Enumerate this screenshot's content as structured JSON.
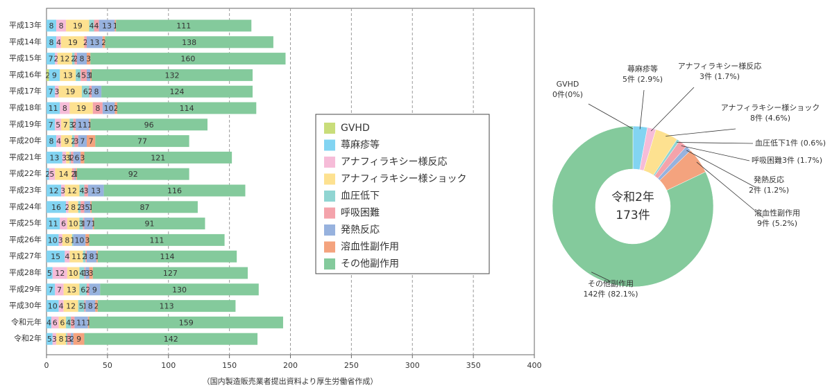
{
  "chart_data": [
    {
      "type": "stacked-barh",
      "categories": [
        "平成13年",
        "平成14年",
        "平成15年",
        "平成16年",
        "平成17年",
        "平成18年",
        "平成19年",
        "平成20年",
        "平成21年",
        "平成22年",
        "平成23年",
        "平成24年",
        "平成25年",
        "平成26年",
        "平成27年",
        "平成28年",
        "平成29年",
        "平成30年",
        "令和元年",
        "令和2年"
      ],
      "series": [
        {
          "name": "GVHD",
          "color": "#c9dd7a",
          "values": [
            0,
            0,
            0,
            2,
            0,
            0,
            0,
            0,
            0,
            0,
            0,
            0,
            0,
            0,
            0,
            0,
            0,
            0,
            0,
            0
          ]
        },
        {
          "name": "蕁麻疹等",
          "color": "#82d4f2",
          "values": [
            8,
            8,
            7,
            9,
            7,
            11,
            7,
            8,
            13,
            2,
            12,
            16,
            11,
            10,
            15,
            5,
            7,
            10,
            4,
            5
          ]
        },
        {
          "name": "アナフィラキシー様反応",
          "color": "#f6bcd8",
          "values": [
            8,
            4,
            2,
            0,
            3,
            8,
            5,
            4,
            3,
            5,
            3,
            2,
            6,
            3,
            4,
            12,
            7,
            4,
            6,
            3
          ]
        },
        {
          "name": "アナフィラキシー様ショック",
          "color": "#fde190",
          "values": [
            19,
            19,
            12,
            13,
            19,
            19,
            7,
            9,
            3,
            14,
            12,
            8,
            10,
            8,
            11,
            10,
            13,
            12,
            6,
            8
          ]
        },
        {
          "name": "血圧低下",
          "color": "#90d5d2",
          "values": [
            4,
            0,
            2,
            4,
            6,
            0,
            3,
            2,
            1,
            0,
            4,
            2,
            3,
            1,
            2,
            4,
            6,
            5,
            4,
            1
          ]
        },
        {
          "name": "呼吸困難",
          "color": "#f4a3ab",
          "values": [
            4,
            2,
            2,
            5,
            2,
            8,
            2,
            3,
            2,
            2,
            3,
            3,
            1,
            0,
            1,
            1,
            2,
            1,
            3,
            3
          ]
        },
        {
          "name": "発熱反応",
          "color": "#97b2de",
          "values": [
            13,
            13,
            8,
            3,
            8,
            10,
            11,
            7,
            6,
            1,
            13,
            5,
            7,
            10,
            8,
            3,
            9,
            8,
            11,
            2
          ]
        },
        {
          "name": "溶血性副作用",
          "color": "#f4a37e",
          "values": [
            1,
            2,
            3,
            1,
            0,
            2,
            1,
            7,
            3,
            1,
            0,
            1,
            1,
            3,
            1,
            3,
            0,
            2,
            1,
            9
          ]
        },
        {
          "name": "その他副作用",
          "color": "#84ca9c",
          "values": [
            111,
            138,
            160,
            132,
            124,
            114,
            96,
            77,
            121,
            92,
            116,
            87,
            91,
            111,
            114,
            127,
            130,
            113,
            159,
            142
          ]
        }
      ],
      "xlim": [
        0,
        400
      ],
      "xticks": [
        0,
        50,
        100,
        150,
        200,
        250,
        300,
        350,
        400
      ],
      "grid": true,
      "legend": "center",
      "note": "（国内製造販売業者提出資料より厚生労働省作成）"
    },
    {
      "type": "donut",
      "categories": [
        "GVHD",
        "蕁麻疹等",
        "アナフィラキシー様反応",
        "アナフィラキシー様ショック",
        "血圧低下",
        "呼吸困難",
        "発熱反応",
        "溶血性副作用",
        "その他副作用"
      ],
      "values": [
        0,
        5,
        3,
        8,
        1,
        3,
        2,
        9,
        142
      ],
      "value_labels": [
        "0件(0%)",
        "5件 (2.9%)",
        "3件 (1.7%)",
        "8件 (4.6%)",
        "1件 (0.6%)",
        "3件 (1.7%)",
        "2件 (1.2%)",
        "9件 (5.2%)",
        "142件 (82.1%)"
      ],
      "colors": [
        "#c9dd7a",
        "#82d4f2",
        "#f6bcd8",
        "#fde190",
        "#90d5d2",
        "#f4a3ab",
        "#97b2de",
        "#f4a37e",
        "#84ca9c"
      ],
      "center_title": "令和2年",
      "center_total": "173件"
    }
  ]
}
